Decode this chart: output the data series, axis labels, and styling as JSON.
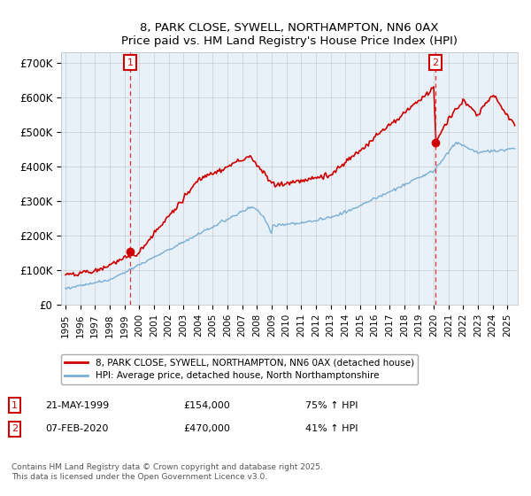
{
  "title": "8, PARK CLOSE, SYWELL, NORTHAMPTON, NN6 0AX",
  "subtitle": "Price paid vs. HM Land Registry's House Price Index (HPI)",
  "xlim_start": 1994.7,
  "xlim_end": 2025.7,
  "ylim": [
    0,
    730000
  ],
  "yticks": [
    0,
    100000,
    200000,
    300000,
    400000,
    500000,
    600000,
    700000
  ],
  "ytick_labels": [
    "£0",
    "£100K",
    "£200K",
    "£300K",
    "£400K",
    "£500K",
    "£600K",
    "£700K"
  ],
  "sale1_x": 1999.386,
  "sale1_y": 154000,
  "sale1_label": "1",
  "sale2_x": 2020.09,
  "sale2_y": 470000,
  "sale2_label": "2",
  "line_color_red": "#cc0000",
  "line_color_blue": "#7aafd4",
  "vline_color": "#dd3333",
  "plot_bg_color": "#e8f0f8",
  "legend_line1": "8, PARK CLOSE, SYWELL, NORTHAMPTON, NN6 0AX (detached house)",
  "legend_line2": "HPI: Average price, detached house, North Northamptonshire",
  "footnote": "Contains HM Land Registry data © Crown copyright and database right 2025.\nThis data is licensed under the Open Government Licence v3.0.",
  "background_color": "#ffffff",
  "grid_color": "#cccccc"
}
